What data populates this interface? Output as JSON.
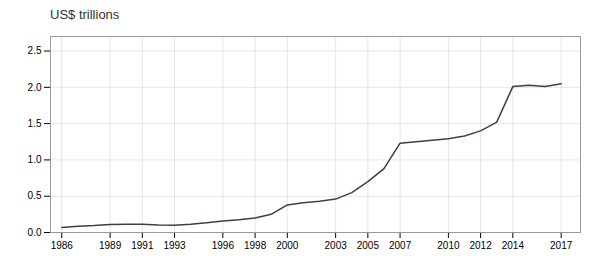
{
  "chart_data": {
    "type": "line",
    "title": "US$ trillions",
    "x": [
      1986,
      1987,
      1988,
      1989,
      1990,
      1991,
      1992,
      1993,
      1994,
      1995,
      1996,
      1997,
      1998,
      1999,
      2000,
      2001,
      2002,
      2003,
      2004,
      2005,
      2006,
      2007,
      2008,
      2009,
      2010,
      2011,
      2012,
      2013,
      2014,
      2015,
      2016,
      2017
    ],
    "values": [
      0.07,
      0.085,
      0.095,
      0.11,
      0.115,
      0.115,
      0.105,
      0.1,
      0.115,
      0.135,
      0.16,
      0.175,
      0.2,
      0.25,
      0.38,
      0.41,
      0.43,
      0.46,
      0.55,
      0.7,
      0.88,
      1.23,
      1.25,
      1.27,
      1.29,
      1.33,
      1.4,
      1.52,
      2.01,
      2.03,
      2.01,
      2.05
    ],
    "color": "#3a3f50",
    "xlim": [
      1985.3,
      2018.2
    ],
    "xticks": [
      1986,
      1989,
      1991,
      1993,
      1996,
      1998,
      2000,
      2003,
      2005,
      2007,
      2010,
      2012,
      2014,
      2017
    ],
    "ylim": [
      0,
      2.7
    ],
    "yticks": [
      {
        "value": 0.0,
        "label": "0.0"
      },
      0.5,
      {
        "value": 1.0,
        "label": "1.0"
      },
      1.5,
      {
        "value": 2.0,
        "label": "2.0"
      },
      2.5
    ],
    "grid": true
  }
}
